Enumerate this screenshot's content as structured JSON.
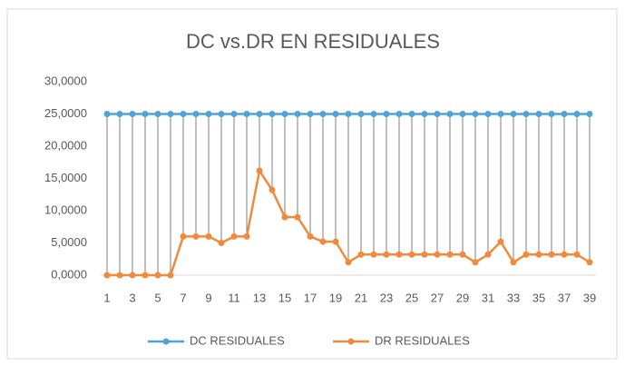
{
  "chart_data": {
    "type": "line",
    "title": "DC vs.DR EN RESIDUALES",
    "categories": [
      "1",
      null,
      "3",
      null,
      "5",
      null,
      "7",
      null,
      "9",
      null,
      "11",
      null,
      "13",
      null,
      "15",
      null,
      "17",
      null,
      "19",
      null,
      "21",
      null,
      "23",
      null,
      "25",
      null,
      "27",
      null,
      "29",
      null,
      "31",
      null,
      "33",
      null,
      "35",
      null,
      "37",
      null,
      "39"
    ],
    "series": [
      {
        "name": "DC RESIDUALES",
        "color": "#4fa3d8",
        "values": [
          25,
          25,
          25,
          25,
          25,
          25,
          25,
          25,
          25,
          25,
          25,
          25,
          25,
          25,
          25,
          25,
          25,
          25,
          25,
          25,
          25,
          25,
          25,
          25,
          25,
          25,
          25,
          25,
          25,
          25,
          25,
          25,
          25,
          25,
          25,
          25,
          25,
          25,
          25
        ]
      },
      {
        "name": "DR RESIDUALES",
        "color": "#f08a3c",
        "values": [
          0,
          0,
          0,
          0,
          0,
          0,
          6,
          6,
          6,
          5,
          6,
          6,
          16.2,
          13.2,
          9,
          9,
          6,
          5.2,
          5.2,
          2,
          3.2,
          3.2,
          3.2,
          3.2,
          3.2,
          3.2,
          3.2,
          3.2,
          3.2,
          2,
          3.2,
          5.2,
          2,
          3.2,
          3.2,
          3.2,
          3.2,
          3.2,
          2
        ]
      }
    ],
    "ylim": [
      0,
      30
    ],
    "yticks": [
      {
        "value": 0,
        "label": "0,0000"
      },
      {
        "value": 5,
        "label": "5,0000"
      },
      {
        "value": 10,
        "label": "10,0000"
      },
      {
        "value": 15,
        "label": "15,0000"
      },
      {
        "value": 20,
        "label": "20,0000"
      },
      {
        "value": 25,
        "label": "25,0000"
      },
      {
        "value": 30,
        "label": "30,0000"
      }
    ],
    "drop_lines": true,
    "legend": "bottom"
  }
}
